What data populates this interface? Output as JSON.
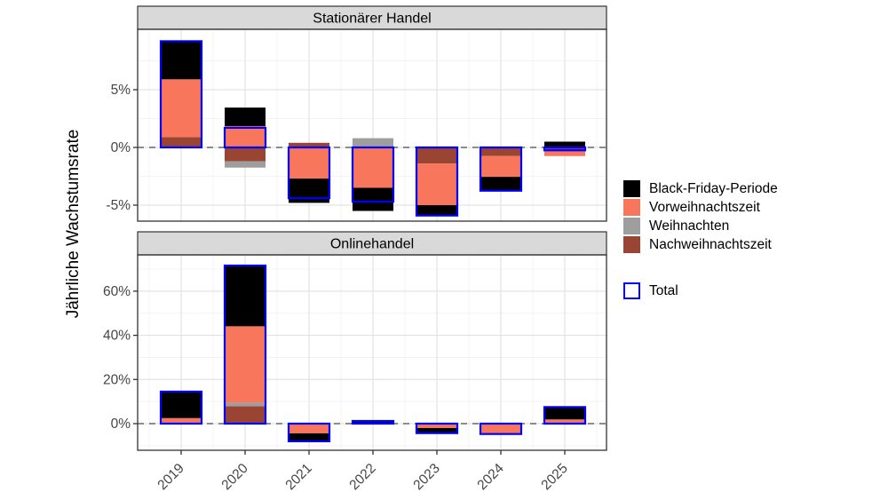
{
  "figure": {
    "y_axis_title": "Jährliche Wachstumsrate"
  },
  "legend": {
    "items": [
      {
        "label": "Black-Friday-Periode",
        "color": "#000000",
        "type": "fill"
      },
      {
        "label": "Vorweihnachtszeit",
        "color": "#F8765C",
        "type": "fill"
      },
      {
        "label": "Weihnachten",
        "color": "#9E9E9E",
        "type": "fill"
      },
      {
        "label": "Nachweihnachtszeit",
        "color": "#9A4433",
        "type": "fill"
      },
      {
        "label": "Total",
        "color": "#0000FF",
        "type": "outline"
      }
    ]
  },
  "chart_data": [
    {
      "type": "bar",
      "stacked": true,
      "facet": "Stationärer Handel",
      "ylabel": "Jährliche Wachstumsrate",
      "categories": [
        "2019",
        "2020",
        "2021",
        "2022",
        "2023",
        "2024",
        "2025"
      ],
      "series": [
        {
          "name": "Black-Friday-Periode",
          "color": "#000000",
          "values": [
            3.3,
            1.6,
            -2.1,
            -2.0,
            -0.9,
            -1.2,
            0.5
          ]
        },
        {
          "name": "Vorweihnachtszeit",
          "color": "#F8765C",
          "values": [
            5.0,
            1.85,
            -2.7,
            -3.5,
            -3.6,
            -1.8,
            -0.55
          ]
        },
        {
          "name": "Weihnachten",
          "color": "#9E9E9E",
          "values": [
            0,
            -0.55,
            0,
            0.8,
            0,
            0,
            0
          ]
        },
        {
          "name": "Nachweihnachtszeit",
          "color": "#9A4433",
          "values": [
            0.9,
            -1.2,
            0.4,
            0,
            -1.4,
            -0.75,
            -0.2
          ]
        }
      ],
      "totals": [
        9.2,
        1.7,
        -4.4,
        -4.7,
        -5.9,
        -3.75,
        -0.25
      ],
      "total_stroke": "#0000FF",
      "stack_order_from_zero": [
        "Nachweihnachtszeit",
        "Weihnachten",
        "Vorweihnachtszeit",
        "Black-Friday-Periode"
      ],
      "yticks": [
        {
          "value": 5,
          "label": "5%"
        },
        {
          "value": 0,
          "label": "0%"
        },
        {
          "value": -5,
          "label": "-5%"
        }
      ],
      "ylim": [
        -6.4,
        10.2
      ],
      "zero_line": "dashed",
      "grid": true,
      "legend_position": "right"
    },
    {
      "type": "bar",
      "stacked": true,
      "facet": "Onlinehandel",
      "ylabel": "Jährliche Wachstumsrate",
      "categories": [
        "2019",
        "2020",
        "2021",
        "2022",
        "2023",
        "2024",
        "2025"
      ],
      "series": [
        {
          "name": "Black-Friday-Periode",
          "color": "#000000",
          "values": [
            12.0,
            27.5,
            -3.6,
            1.2,
            -2.3,
            0,
            5.6
          ]
        },
        {
          "name": "Vorweihnachtszeit",
          "color": "#F8765C",
          "values": [
            2.5,
            34.6,
            -4.4,
            0,
            -2.0,
            -4.7,
            1.9
          ]
        },
        {
          "name": "Weihnachten",
          "color": "#9E9E9E",
          "values": [
            0,
            1.6,
            0,
            0,
            0,
            0,
            0
          ]
        },
        {
          "name": "Nachweihnachtszeit",
          "color": "#9A4433",
          "values": [
            0,
            7.9,
            0,
            0,
            0,
            0,
            0
          ]
        }
      ],
      "totals": [
        14.5,
        71.6,
        -8.0,
        1.2,
        -4.3,
        -4.7,
        7.5
      ],
      "total_stroke": "#0000FF",
      "stack_order_from_zero": [
        "Nachweihnachtszeit",
        "Weihnachten",
        "Vorweihnachtszeit",
        "Black-Friday-Periode"
      ],
      "yticks": [
        {
          "value": 60,
          "label": "60%"
        },
        {
          "value": 40,
          "label": "40%"
        },
        {
          "value": 20,
          "label": "20%"
        },
        {
          "value": 0,
          "label": "0%"
        }
      ],
      "ylim": [
        -12.0,
        76.4
      ],
      "zero_line": "dashed",
      "grid": true,
      "legend_position": "right"
    }
  ]
}
